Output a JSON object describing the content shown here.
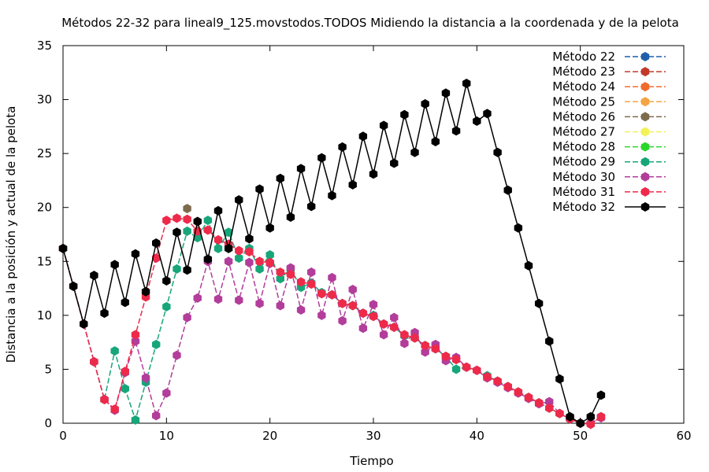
{
  "chart_data": {
    "type": "line",
    "title": "Métodos 22-32 para lineal9_125.movstodos.TODOS Midiendo la distancia a la coordenada y de la pelota",
    "xlabel": "Tiempo",
    "ylabel": "Distancia a la posición y actual de la pelota",
    "xlim": [
      0,
      60
    ],
    "ylim": [
      0,
      35
    ],
    "x_ticks": [
      0,
      10,
      20,
      30,
      40,
      50,
      60
    ],
    "y_ticks": [
      0,
      5,
      10,
      15,
      20,
      25,
      30,
      35
    ],
    "grid": false,
    "legend_position": "top-right",
    "series": [
      {
        "name": "Método 22",
        "color": "#1f5fa8",
        "x": [],
        "y": []
      },
      {
        "name": "Método 23",
        "color": "#c0392b",
        "x": [],
        "y": []
      },
      {
        "name": "Método 24",
        "color": "#ef6c2c",
        "x": [],
        "y": []
      },
      {
        "name": "Método 25",
        "color": "#f4a442",
        "x": [],
        "y": []
      },
      {
        "name": "Método 26",
        "color": "#7d6b4e",
        "x": [],
        "y": []
      },
      {
        "name": "Método 27",
        "color": "#f2f25a",
        "x": [],
        "y": []
      },
      {
        "name": "Método 28",
        "color": "#2bd62b",
        "x": [],
        "y": []
      },
      {
        "name": "Método 29",
        "color": "#17a67a",
        "x": [
          0,
          1,
          2,
          3,
          4,
          5,
          6,
          7,
          8,
          9,
          10,
          11,
          12,
          13,
          14,
          15,
          16,
          17,
          18,
          19,
          20,
          21,
          22,
          23,
          24,
          25,
          26,
          27,
          28,
          29,
          30,
          31,
          32,
          33,
          34,
          35,
          36,
          37,
          38,
          39,
          40,
          41,
          42,
          43,
          44,
          45,
          46,
          47,
          48,
          49,
          50,
          51,
          52
        ],
        "y": [
          16.2,
          12.7,
          9.2,
          5.7,
          2.2,
          6.7,
          3.2,
          0.3,
          3.8,
          7.3,
          10.8,
          14.3,
          17.8,
          17.2,
          18.8,
          16.2,
          17.7,
          15.3,
          16.2,
          14.3,
          15.6,
          13.4,
          14.3,
          12.6,
          13.0,
          12.1,
          11.9,
          11.1,
          10.9,
          10.2,
          10.0,
          9.2,
          8.9,
          8.1,
          7.9,
          7.2,
          6.9,
          6.2,
          5.0,
          5.2,
          4.9,
          4.4,
          3.9,
          3.4,
          2.9,
          2.4,
          1.9,
          1.4,
          0.9,
          0.4,
          0.0,
          0.0,
          0.6
        ]
      },
      {
        "name": "Método 30",
        "color": "#b23d9b",
        "x": [
          0,
          1,
          2,
          3,
          4,
          5,
          6,
          7,
          8,
          9,
          10,
          11,
          12,
          13,
          14,
          15,
          16,
          17,
          18,
          19,
          20,
          21,
          22,
          23,
          24,
          25,
          26,
          27,
          28,
          29,
          30,
          31,
          32,
          33,
          34,
          35,
          36,
          37,
          38,
          39,
          40,
          41,
          42,
          43,
          44,
          45,
          46,
          47,
          48,
          49,
          50,
          51,
          52
        ],
        "y": [
          16.2,
          12.7,
          9.2,
          5.7,
          2.2,
          1.2,
          4.7,
          7.6,
          4.2,
          0.7,
          2.8,
          6.3,
          9.8,
          11.6,
          15.0,
          11.5,
          15.0,
          11.4,
          14.9,
          11.1,
          14.8,
          10.9,
          14.4,
          10.5,
          14.0,
          10.0,
          13.5,
          9.5,
          12.4,
          8.8,
          11.0,
          8.2,
          9.8,
          7.4,
          8.4,
          6.6,
          7.3,
          5.8,
          6.1,
          5.2,
          4.9,
          4.2,
          3.8,
          3.3,
          2.8,
          2.3,
          1.8,
          2.0,
          0.9,
          0.4,
          0.0,
          0.0,
          0.5
        ]
      },
      {
        "name": "Método 31",
        "color": "#ee2a4a",
        "x": [
          0,
          1,
          2,
          3,
          4,
          5,
          6,
          7,
          8,
          9,
          10,
          11,
          12,
          13,
          14,
          15,
          16,
          17,
          18,
          19,
          20,
          21,
          22,
          23,
          24,
          25,
          26,
          27,
          28,
          29,
          30,
          31,
          32,
          33,
          34,
          35,
          36,
          37,
          38,
          39,
          40,
          41,
          42,
          43,
          44,
          45,
          46,
          47,
          48,
          49,
          50,
          51,
          52
        ],
        "y": [
          16.2,
          12.7,
          9.2,
          5.7,
          2.2,
          1.3,
          4.8,
          8.2,
          11.7,
          15.3,
          18.8,
          19.0,
          18.9,
          17.8,
          17.9,
          17.0,
          16.6,
          16.0,
          15.9,
          15.0,
          14.9,
          14.0,
          13.8,
          13.1,
          12.9,
          12.0,
          11.9,
          11.1,
          10.9,
          10.2,
          9.9,
          9.2,
          8.9,
          8.2,
          7.9,
          7.2,
          6.9,
          6.2,
          5.9,
          5.2,
          4.9,
          4.3,
          3.9,
          3.4,
          2.9,
          2.4,
          1.9,
          1.4,
          0.9,
          0.4,
          0.0,
          -0.1,
          0.6
        ]
      },
      {
        "name": "Método 32",
        "color": "#000000",
        "x": [
          0,
          1,
          2,
          3,
          4,
          5,
          6,
          7,
          8,
          9,
          10,
          11,
          12,
          13,
          14,
          15,
          16,
          17,
          18,
          19,
          20,
          21,
          22,
          23,
          24,
          25,
          26,
          27,
          28,
          29,
          30,
          31,
          32,
          33,
          34,
          35,
          36,
          37,
          38,
          39,
          40,
          41,
          42,
          43,
          44,
          45,
          46,
          47,
          48,
          49,
          50,
          51,
          52
        ],
        "y": [
          16.2,
          12.7,
          9.2,
          13.7,
          10.2,
          14.7,
          11.2,
          15.7,
          12.2,
          16.7,
          13.2,
          17.7,
          14.2,
          18.7,
          15.2,
          19.7,
          16.2,
          20.7,
          17.1,
          21.7,
          18.1,
          22.7,
          19.1,
          23.6,
          20.1,
          24.6,
          21.1,
          25.6,
          22.1,
          26.6,
          23.1,
          27.6,
          24.1,
          28.6,
          25.1,
          29.6,
          26.1,
          30.6,
          27.1,
          31.5,
          28.0,
          28.7,
          25.1,
          21.6,
          18.1,
          14.6,
          11.1,
          7.6,
          4.1,
          0.6,
          0.0,
          0.6,
          2.6
        ]
      }
    ],
    "extra_points": [
      {
        "series": "Método 26",
        "x": 12,
        "y": 19.9
      }
    ]
  }
}
